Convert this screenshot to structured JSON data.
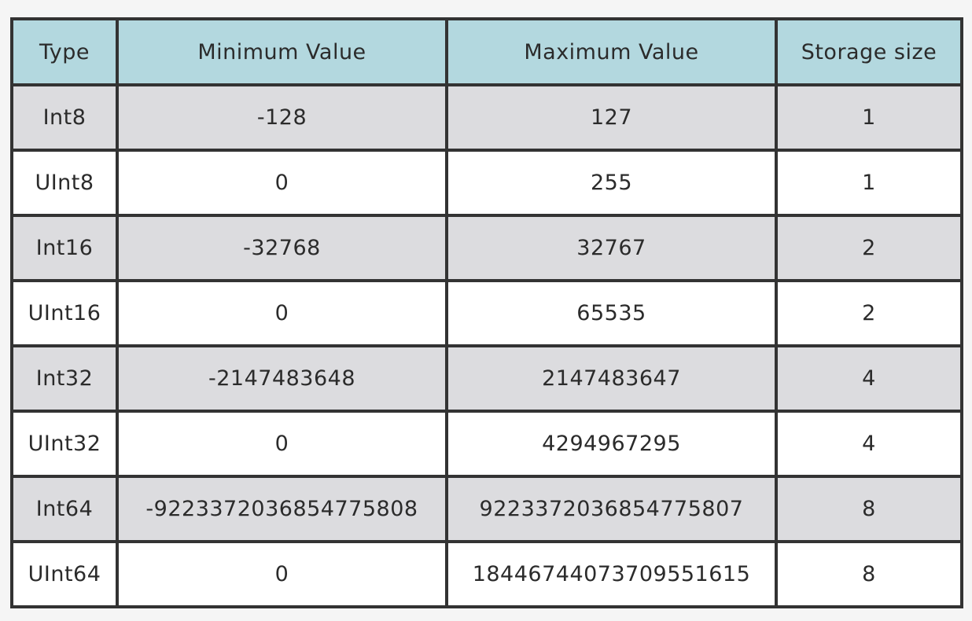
{
  "header": {
    "background": "#b3d8df",
    "columns": [
      "Type",
      "Minimum Value",
      "Maximum Value",
      "Storage size"
    ]
  },
  "rows": [
    {
      "type": "Int8",
      "min": "-128",
      "max": "127",
      "size": "1"
    },
    {
      "type": "UInt8",
      "min": "0",
      "max": "255",
      "size": "1"
    },
    {
      "type": "Int16",
      "min": "-32768",
      "max": "32767",
      "size": "2"
    },
    {
      "type": "UInt16",
      "min": "0",
      "max": "65535",
      "size": "2"
    },
    {
      "type": "Int32",
      "min": "-2147483648",
      "max": "2147483647",
      "size": "4"
    },
    {
      "type": "UInt32",
      "min": "0",
      "max": "4294967295",
      "size": "4"
    },
    {
      "type": "Int64",
      "min": "-9223372036854775808",
      "max": "9223372036854775807",
      "size": "8"
    },
    {
      "type": "UInt64",
      "min": "0",
      "max": "18446744073709551615",
      "size": "8"
    }
  ],
  "colors": {
    "border": "#333333",
    "row_shaded": "#dcdcdf",
    "row_plain": "#ffffff"
  }
}
